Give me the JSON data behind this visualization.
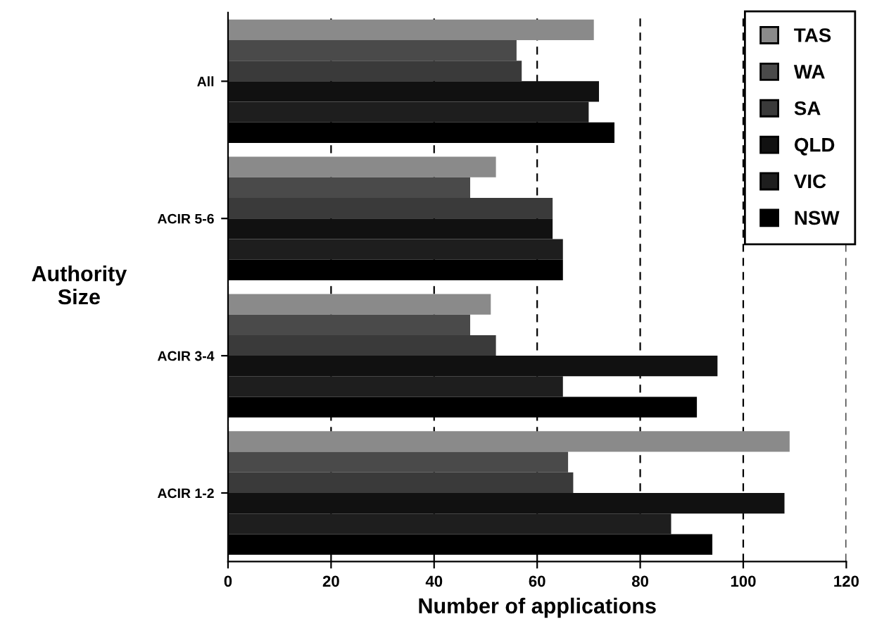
{
  "chart_data": {
    "type": "bar",
    "orientation": "horizontal",
    "xlabel": "Number of applications",
    "ylabel": "Authority\nSize",
    "categories": [
      "All",
      "ACIR 5-6",
      "ACIR 3-4",
      "ACIR 1-2"
    ],
    "series": [
      {
        "name": "TAS",
        "color": "#8a8a8a",
        "values": [
          71,
          52,
          51,
          109
        ]
      },
      {
        "name": "WA",
        "color": "#4a4a4a",
        "values": [
          56,
          47,
          47,
          66
        ]
      },
      {
        "name": "SA",
        "color": "#3a3a3a",
        "values": [
          57,
          63,
          52,
          67
        ]
      },
      {
        "name": "QLD",
        "color": "#111111",
        "values": [
          72,
          63,
          95,
          108
        ]
      },
      {
        "name": "VIC",
        "color": "#1e1e1e",
        "values": [
          70,
          65,
          65,
          86
        ]
      },
      {
        "name": "NSW",
        "color": "#000000",
        "values": [
          75,
          65,
          91,
          94
        ]
      }
    ],
    "xlim": [
      0,
      120
    ],
    "xticks": [
      0,
      20,
      40,
      60,
      80,
      100,
      120
    ],
    "grid": "x",
    "legend": "top right"
  }
}
